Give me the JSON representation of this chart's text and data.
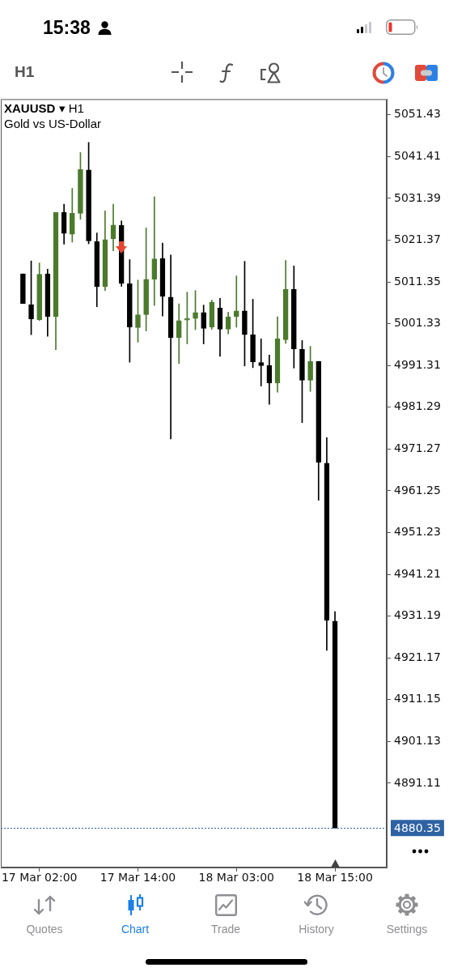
{
  "chart_data": {
    "type": "candlestick",
    "title": "XAUUSD ▾ H1",
    "subtitle": "Gold vs US-Dollar",
    "categories": [
      null,
      null,
      "17 Mar 02:00",
      null,
      null,
      null,
      null,
      null,
      null,
      null,
      null,
      null,
      null,
      null,
      "17 Mar 14:00",
      null,
      null,
      null,
      null,
      null,
      null,
      null,
      null,
      null,
      null,
      null,
      "18 Mar 03:00",
      null,
      null,
      null,
      null,
      null,
      null,
      null,
      null,
      null,
      null,
      null,
      "18 Mar 15:00"
    ],
    "ohlc": [
      [
        5013.3,
        5013.3,
        5006.2,
        5006.2
      ],
      [
        5005.9,
        5016.4,
        4998.7,
        5002.5
      ],
      [
        5002.3,
        5015.9,
        5002.1,
        5013.2
      ],
      [
        5013.3,
        5014.4,
        4998.3,
        5003.1
      ],
      [
        5003.1,
        5028.0,
        4995.1,
        5028.0
      ],
      [
        5028.0,
        5030.0,
        5020.4,
        5023.0
      ],
      [
        5022.8,
        5033.8,
        5020.9,
        5027.8
      ],
      [
        5027.8,
        5042.4,
        5026.4,
        5038.3
      ],
      [
        5038.2,
        5044.8,
        5020.5,
        5021.2
      ],
      [
        5021.0,
        5023.1,
        5005.4,
        5010.2
      ],
      [
        5010.2,
        5028.4,
        5009.3,
        5021.5
      ],
      [
        5021.7,
        5030.0,
        5018.8,
        5025.0
      ],
      [
        5024.9,
        5026.0,
        5010.3,
        5011.0
      ],
      [
        5010.9,
        5016.7,
        4992.1,
        5000.5
      ],
      [
        5000.4,
        5011.8,
        4996.9,
        5003.5
      ],
      [
        5003.5,
        5024.3,
        4999.6,
        5012.0
      ],
      [
        5012.0,
        5031.8,
        5005.7,
        5016.9
      ],
      [
        5017.0,
        5020.7,
        5003.2,
        5007.9
      ],
      [
        5007.7,
        5017.8,
        4973.7,
        4998.0
      ],
      [
        4998.0,
        5006.1,
        4991.8,
        5002.1
      ],
      [
        5002.2,
        5008.9,
        4996.5,
        5002.6
      ],
      [
        5002.6,
        5009.3,
        4999.9,
        5004.0
      ],
      [
        5004.0,
        5005.8,
        4996.5,
        5000.2
      ],
      [
        5000.5,
        5007.0,
        5000.0,
        5006.5
      ],
      [
        5005.1,
        5007.4,
        4993.5,
        5000.0
      ],
      [
        5000.0,
        5004.1,
        4998.9,
        5003.0
      ],
      [
        5003.1,
        5012.8,
        5000.5,
        5004.4
      ],
      [
        5004.4,
        5016.3,
        4991.2,
        4998.7
      ],
      [
        4998.7,
        5007.2,
        4990.8,
        4992.2
      ],
      [
        4992.0,
        4997.7,
        4986.4,
        4991.3
      ],
      [
        4991.3,
        4993.8,
        4982.0,
        4987.1
      ],
      [
        4987.1,
        5003.0,
        4984.9,
        4997.7
      ],
      [
        4997.5,
        5016.5,
        4996.6,
        5009.6
      ],
      [
        5009.6,
        5015.2,
        4990.7,
        4995.3
      ],
      [
        4995.2,
        4997.3,
        4977.6,
        4987.8
      ],
      [
        4987.8,
        4995.9,
        4985.1,
        4992.3
      ],
      [
        4992.3,
        4992.3,
        4959.0,
        4968.1
      ],
      [
        4967.9,
        4974.0,
        4923.0,
        4930.2
      ],
      [
        4930.0,
        4932.3,
        4880.35,
        4880.35
      ]
    ],
    "colors": [
      "#000000",
      "#000000",
      "#4b7a2c",
      "#000000",
      "#4b7a2c",
      "#000000",
      "#4b7a2c",
      "#4b7a2c",
      "#000000",
      "#000000",
      "#4b7a2c",
      "#4b7a2c",
      "#000000",
      "#000000",
      "#4b7a2c",
      "#4b7a2c",
      "#4b7a2c",
      "#000000",
      "#000000",
      "#4b7a2c",
      "#4b7a2c",
      "#4b7a2c",
      "#000000",
      "#4b7a2c",
      "#000000",
      "#4b7a2c",
      "#4b7a2c",
      "#000000",
      "#000000",
      "#000000",
      "#000000",
      "#4b7a2c",
      "#4b7a2c",
      "#000000",
      "#000000",
      "#4b7a2c",
      "#000000",
      "#000000",
      "#000000"
    ],
    "ylim": [
      4870.9,
      5055.2
    ],
    "yticks": [
      5051.43,
      5041.41,
      5031.39,
      5021.37,
      5011.35,
      5001.33,
      4991.31,
      4981.29,
      4971.27,
      4961.25,
      4951.23,
      4941.21,
      4931.19,
      4921.17,
      4911.15,
      4901.13,
      4891.11
    ],
    "ref_lines": [
      {
        "axis": "y",
        "value": 4880.35,
        "label": "4880.35",
        "color": "#2f62a3",
        "line_style": "dotted"
      }
    ],
    "annotations": [
      "15:38",
      "H1",
      "Quotes",
      "Chart",
      "Trade",
      "History",
      "Settings"
    ]
  }
}
